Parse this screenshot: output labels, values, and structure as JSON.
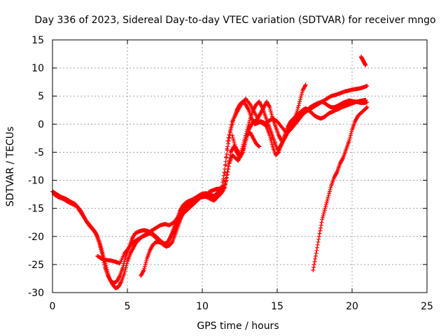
{
  "chart_data": {
    "type": "scatter",
    "title": "Day 336 of 2023, Sidereal Day-to-day VTEC variation (SDTVAR) for receiver mngo",
    "xlabel": "GPS time / hours",
    "ylabel": "SDTVAR / TECUs",
    "xlim": [
      0,
      25
    ],
    "ylim": [
      -30,
      15
    ],
    "xticks": [
      0,
      5,
      10,
      15,
      20,
      25
    ],
    "yticks": [
      -30,
      -25,
      -20,
      -15,
      -10,
      -5,
      0,
      5,
      10,
      15
    ],
    "grid": true,
    "marker": "plus",
    "color": "#ff0000",
    "series": [
      {
        "x": [
          0.0,
          0.3,
          0.6,
          0.9,
          1.2,
          1.5,
          1.7,
          1.9,
          2.1,
          2.3,
          2.5,
          2.7,
          2.9,
          3.1,
          3.3,
          3.5,
          3.7,
          3.9,
          4.1,
          4.3,
          4.5,
          4.7,
          4.9,
          5.1,
          5.3,
          5.5,
          5.7,
          5.9,
          6.1,
          6.3,
          6.5,
          6.7,
          6.9,
          7.1,
          7.3,
          7.5,
          7.7,
          7.9,
          8.1,
          8.3,
          8.5,
          8.7,
          8.9,
          9.1,
          9.3,
          9.5,
          9.7,
          9.9,
          10.1,
          10.3,
          10.5,
          10.7,
          10.9,
          11.1,
          11.3,
          11.5,
          11.7,
          11.9,
          12.1,
          12.3,
          12.5,
          12.7,
          12.9,
          13.1,
          13.3,
          13.5,
          13.7,
          13.9,
          14.1,
          14.3,
          14.5,
          14.7,
          14.9,
          15.1,
          15.3,
          15.5,
          15.7,
          15.9,
          16.1,
          16.3,
          16.5,
          16.7,
          16.9,
          17.1,
          17.3,
          17.5,
          17.7,
          17.9,
          18.1,
          18.3,
          18.5,
          18.7,
          18.9,
          19.1,
          19.3,
          19.5,
          19.7,
          19.9,
          20.1,
          20.3,
          20.5,
          20.7,
          20.9
        ],
        "y": [
          -12,
          -12.5,
          -13,
          -13.3,
          -13.8,
          -14.2,
          -14.8,
          -15.5,
          -16.5,
          -17.5,
          -18.2,
          -18.8,
          -19.5,
          -21,
          -23,
          -25.5,
          -27,
          -28,
          -28.3,
          -28,
          -27,
          -25.5,
          -23.5,
          -22,
          -20.5,
          -19.5,
          -19.2,
          -19,
          -18.9,
          -19,
          -19.2,
          -19.5,
          -20,
          -20.5,
          -21,
          -21.3,
          -21,
          -20,
          -18.5,
          -17,
          -15.5,
          -14.5,
          -14,
          -13.7,
          -13.5,
          -13.2,
          -13,
          -12.8,
          -12.7,
          -12.8,
          -13,
          -13.2,
          -12.5,
          -12,
          -11.5,
          -8,
          -4,
          -1,
          1,
          2.5,
          3.5,
          4,
          3.5,
          2.5,
          1,
          0,
          0.2,
          0.5,
          0.3,
          -0.5,
          -2,
          -4,
          -5.5,
          -5,
          -3.5,
          -2,
          -0.5,
          0.5,
          1,
          1.5,
          2,
          2.5,
          2.8,
          2.5,
          2,
          1.5,
          1.2,
          1,
          1.2,
          1.6,
          2,
          2.2,
          2.5,
          2.7,
          3,
          3.2,
          3.4,
          3.6,
          3.8,
          4,
          4.1,
          4.2,
          4.3
        ]
      },
      {
        "x": [
          0.1,
          0.4,
          0.7,
          1.0,
          1.3,
          1.6,
          1.9,
          2.2,
          2.5,
          2.8,
          3.0,
          3.2,
          3.4,
          3.6,
          3.8,
          4.0,
          4.2,
          4.4,
          4.6,
          4.8,
          5.0,
          5.2,
          5.4,
          5.6,
          5.8,
          6.0,
          6.2,
          6.4,
          6.6,
          6.8,
          7.0,
          7.2,
          7.4,
          7.6,
          7.8,
          8.0,
          8.2,
          8.4,
          8.6,
          8.8,
          9.0,
          9.2,
          9.4,
          9.6,
          9.8,
          10.0,
          10.2,
          10.4,
          10.6,
          10.8,
          11.0,
          11.2,
          11.4,
          11.6,
          11.8,
          12.0,
          12.2,
          12.4,
          12.6,
          12.8,
          13.0,
          13.2,
          13.4,
          13.6,
          13.8,
          14.0,
          14.2,
          14.4,
          14.6,
          14.8,
          15.0,
          15.2,
          15.4,
          15.6,
          15.8,
          16.0,
          16.2,
          16.4,
          16.6,
          16.8,
          17.0,
          17.2,
          17.4,
          17.6,
          17.8,
          18.0,
          18.2,
          18.4,
          18.6,
          18.8,
          19.0,
          19.2,
          19.4,
          19.6,
          19.8,
          20.0,
          20.2,
          20.4,
          20.6,
          20.8,
          21.0
        ],
        "y": [
          -12.5,
          -13,
          -13.3,
          -13.8,
          -14.2,
          -14.6,
          -15.8,
          -17,
          -18,
          -19,
          -20,
          -21.5,
          -23.5,
          -25.5,
          -27.5,
          -28.5,
          -29.2,
          -29,
          -28,
          -26.5,
          -24.5,
          -23,
          -22,
          -21,
          -20.5,
          -20,
          -19.8,
          -19.5,
          -19.5,
          -20,
          -20.5,
          -21,
          -21.5,
          -21.8,
          -21.6,
          -21,
          -19.5,
          -18,
          -16.5,
          -15.5,
          -14.5,
          -14,
          -13.6,
          -13.4,
          -13.1,
          -13,
          -12.9,
          -13.1,
          -13.4,
          -13.6,
          -13,
          -12.5,
          -11.8,
          -10,
          -7,
          -5.5,
          -6,
          -6.5,
          -5,
          -3,
          -1,
          1,
          2.5,
          3.5,
          4,
          3,
          1.5,
          0,
          -1.5,
          -3,
          -4.5,
          -4,
          -3,
          -2,
          -1,
          0,
          0.5,
          1,
          1.5,
          2,
          2.5,
          3,
          3.3,
          3.6,
          3.8,
          4,
          3.7,
          3.3,
          3,
          3,
          3.2,
          3.5,
          3.8,
          4,
          4.2,
          4.1,
          4,
          3.9,
          3.8,
          3.8,
          3.9
        ]
      },
      {
        "x": [
          3.0,
          3.3,
          3.6,
          3.9,
          4.2,
          4.5,
          4.8,
          5.1,
          5.4,
          5.7,
          6.0,
          6.3,
          6.6,
          6.9,
          7.2,
          7.5,
          7.8,
          8.1,
          8.4,
          8.7,
          9.0,
          9.3,
          9.6,
          9.9,
          10.2,
          10.5,
          10.8,
          11.1,
          11.4,
          11.7,
          12.0,
          12.3,
          12.6,
          12.9,
          13.2,
          13.5,
          13.8,
          14.1,
          14.4,
          14.7,
          15.0,
          15.3,
          15.6,
          15.9,
          16.2,
          16.5,
          16.8,
          17.1,
          17.4,
          17.7,
          18.0,
          18.3,
          18.6,
          18.9,
          19.2,
          19.5,
          19.8,
          20.1,
          20.4,
          20.7,
          21.0
        ],
        "y": [
          -23.5,
          -24,
          -24.2,
          -24.3,
          -24.5,
          -24.8,
          -23,
          -22,
          -21,
          -20.5,
          -20,
          -19.5,
          -19,
          -18.5,
          -18,
          -17.8,
          -18,
          -17.5,
          -16.5,
          -15,
          -14,
          -13.5,
          -13,
          -12.5,
          -12.3,
          -12.5,
          -12.8,
          -12,
          -11.5,
          -3,
          0.5,
          2,
          3.5,
          4.5,
          3.5,
          2,
          0.5,
          0,
          0.5,
          1,
          0.5,
          -0.5,
          -1.5,
          -1,
          0,
          1,
          2,
          2.5,
          3,
          3.5,
          4,
          4.5,
          5,
          5.2,
          5.5,
          5.8,
          6,
          6.2,
          6.3,
          6.5,
          6.8
        ]
      },
      {
        "x": [
          5.9,
          6.1,
          6.3,
          6.5,
          6.7,
          6.9,
          7.1,
          7.3,
          7.5,
          7.7,
          7.9,
          8.1,
          8.3,
          8.5,
          8.7,
          8.9,
          9.1,
          9.3,
          9.5,
          9.7,
          9.9,
          10.1,
          10.3,
          10.5,
          10.7,
          10.9,
          11.1,
          11.3,
          11.5,
          11.7,
          11.9,
          12.1,
          12.3,
          12.5,
          12.7,
          12.9,
          13.1,
          13.3,
          13.5,
          13.7,
          13.9,
          14.1,
          14.3,
          14.5,
          14.7,
          14.9,
          15.1,
          15.3,
          15.5,
          15.7,
          15.9,
          16.1,
          16.3,
          16.5,
          16.7,
          16.9
        ],
        "y": [
          -27,
          -26,
          -24,
          -22.5,
          -21.5,
          -21,
          -21,
          -21.2,
          -21.3,
          -21,
          -20,
          -19,
          -18,
          -17,
          -16,
          -15.5,
          -15,
          -14.5,
          -14,
          -13.5,
          -13,
          -12.8,
          -12.5,
          -12,
          -11.8,
          -11.6,
          -11.5,
          -11.4,
          -11.3,
          -8,
          -5,
          -4,
          -5,
          -6,
          -5,
          -3,
          -1,
          0,
          0.5,
          1,
          2,
          3,
          4,
          3,
          1,
          -0.5,
          -2,
          -3,
          -2.5,
          -1.5,
          -0.5,
          0.5,
          2,
          4,
          6,
          7
        ]
      },
      {
        "x": [
          12.0,
          12.2,
          12.4,
          12.6,
          12.8,
          13.0,
          13.2,
          13.4,
          13.6,
          13.8
        ],
        "y": [
          -2,
          -4,
          -5,
          -5.5,
          -4,
          -2,
          -1.5,
          -2.5,
          -3.5,
          -4
        ]
      },
      {
        "x": [
          17.4,
          17.6,
          17.8,
          18.0,
          18.2,
          18.4,
          18.6,
          18.8,
          19.0,
          19.2,
          19.4,
          19.6,
          19.8,
          20.0,
          20.2,
          20.4,
          20.6,
          20.8,
          21.0
        ],
        "y": [
          -26,
          -23,
          -20,
          -17,
          -15,
          -13,
          -11,
          -9.5,
          -8.5,
          -7,
          -6,
          -4.5,
          -3,
          -1,
          0.5,
          1.5,
          2,
          2.5,
          3
        ]
      },
      {
        "x": [
          20.6,
          20.7,
          20.8,
          20.9
        ],
        "y": [
          12,
          11.5,
          11,
          10.5
        ]
      }
    ]
  }
}
